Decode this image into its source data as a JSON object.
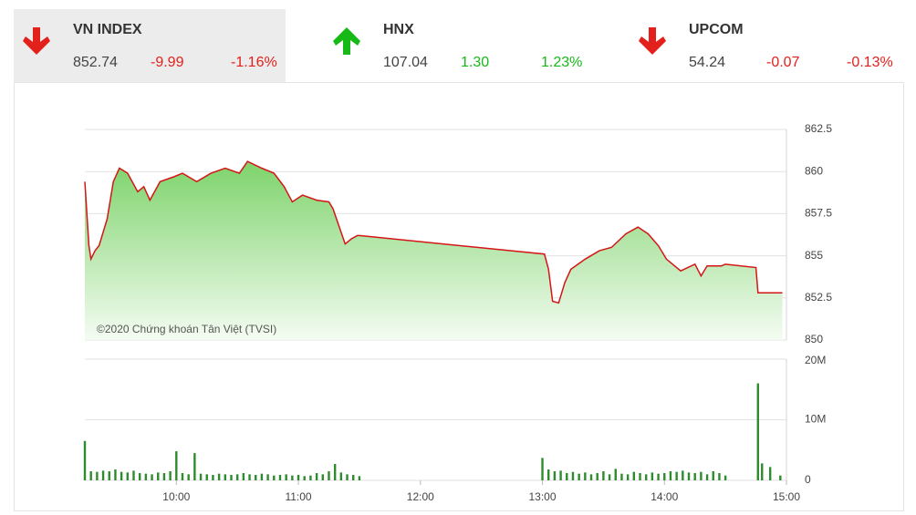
{
  "indices": [
    {
      "name": "VN INDEX",
      "value": "852.74",
      "change": "-9.99",
      "percent": "-1.16%",
      "arrow": "down",
      "color": "#e3211c",
      "highlight": true
    },
    {
      "name": "HNX",
      "value": "107.04",
      "change": "1.30",
      "percent": "1.23%",
      "arrow": "up",
      "color": "#17b917",
      "highlight": false
    },
    {
      "name": "UPCOM",
      "value": "54.24",
      "change": "-0.07",
      "percent": "-0.13%",
      "arrow": "down",
      "color": "#e3211c",
      "highlight": false
    }
  ],
  "chart_data": [
    {
      "type": "line",
      "annotation": "©2020 Chứng khoán Tân Việt (TVSI)",
      "xlim": [
        555,
        900
      ],
      "ylim": [
        850,
        862.5
      ],
      "yticks": [
        850,
        852.5,
        855,
        857.5,
        860,
        862.5
      ],
      "grid": true,
      "area": true,
      "series": [
        {
          "color": "#d41616",
          "x": [
            555,
            557,
            558,
            560,
            562,
            566,
            569,
            572,
            576,
            581,
            584,
            587,
            592,
            599,
            603,
            610,
            617,
            624,
            631,
            635,
            642,
            648,
            653,
            657,
            662,
            669,
            675,
            677,
            681,
            683,
            686,
            689,
            690,
            781,
            783,
            785,
            788,
            791,
            794,
            801,
            808,
            814,
            821,
            827,
            832,
            837,
            841,
            848,
            855,
            858,
            861,
            868,
            870,
            885,
            886,
            898
          ],
          "values": [
            859.4,
            855.6,
            854.8,
            855.3,
            855.6,
            857.2,
            859.4,
            860.2,
            859.9,
            858.8,
            859.1,
            858.3,
            859.4,
            859.7,
            859.9,
            859.4,
            859.9,
            860.2,
            859.9,
            860.6,
            860.2,
            859.9,
            859.1,
            858.2,
            858.6,
            858.3,
            858.2,
            857.8,
            856.4,
            855.7,
            856.0,
            856.2,
            856.2,
            855.1,
            854.2,
            852.3,
            852.2,
            853.4,
            854.2,
            854.8,
            855.3,
            855.5,
            856.3,
            856.7,
            856.3,
            855.6,
            854.8,
            854.1,
            854.5,
            853.8,
            854.4,
            854.4,
            854.5,
            854.3,
            852.8,
            852.8
          ]
        }
      ]
    },
    {
      "type": "bar",
      "xlim": [
        555,
        900
      ],
      "ylim": [
        0,
        20
      ],
      "yticks": [
        0,
        {
          "value": 10,
          "label": "10M"
        },
        {
          "value": 20,
          "label": "20M"
        }
      ],
      "xticks": [
        {
          "value": 600,
          "label": "10:00"
        },
        {
          "value": 660,
          "label": "11:00"
        },
        {
          "value": 720,
          "label": "12:00"
        },
        {
          "value": 780,
          "label": "13:00"
        },
        {
          "value": 840,
          "label": "14:00"
        },
        {
          "value": 900,
          "label": "15:00"
        }
      ],
      "grid": true,
      "color": "#2e8b2e",
      "x": [
        555,
        558,
        561,
        564,
        567,
        570,
        573,
        576,
        579,
        582,
        585,
        588,
        591,
        594,
        597,
        600,
        603,
        606,
        609,
        612,
        615,
        618,
        621,
        624,
        627,
        630,
        633,
        636,
        639,
        642,
        645,
        648,
        651,
        654,
        657,
        660,
        663,
        666,
        669,
        672,
        675,
        678,
        681,
        684,
        687,
        690,
        780,
        783,
        786,
        789,
        792,
        795,
        798,
        801,
        804,
        807,
        810,
        813,
        816,
        819,
        822,
        825,
        828,
        831,
        834,
        837,
        840,
        843,
        846,
        849,
        852,
        855,
        858,
        861,
        864,
        867,
        870,
        886,
        888,
        892,
        897
      ],
      "values": [
        6.5,
        1.5,
        1.4,
        1.6,
        1.5,
        1.8,
        1.4,
        1.3,
        1.6,
        1.2,
        1.1,
        1.0,
        1.3,
        1.2,
        1.5,
        4.8,
        1.2,
        1.0,
        4.5,
        1.1,
        1.0,
        0.9,
        1.1,
        1.0,
        0.9,
        1.0,
        1.2,
        1.0,
        0.9,
        1.1,
        1.0,
        0.8,
        0.9,
        1.0,
        0.8,
        0.9,
        0.7,
        0.8,
        1.2,
        1.0,
        1.5,
        2.7,
        1.3,
        1.0,
        0.9,
        0.7,
        3.7,
        1.8,
        1.5,
        1.6,
        1.2,
        1.4,
        1.1,
        1.3,
        1.0,
        1.2,
        1.5,
        1.0,
        1.9,
        1.1,
        1.0,
        1.4,
        1.2,
        1.0,
        1.3,
        1.1,
        1.2,
        1.5,
        1.4,
        1.6,
        1.3,
        1.2,
        1.4,
        1.0,
        1.5,
        1.2,
        0.8,
        16,
        2.8,
        2.2,
        0.8
      ]
    }
  ]
}
